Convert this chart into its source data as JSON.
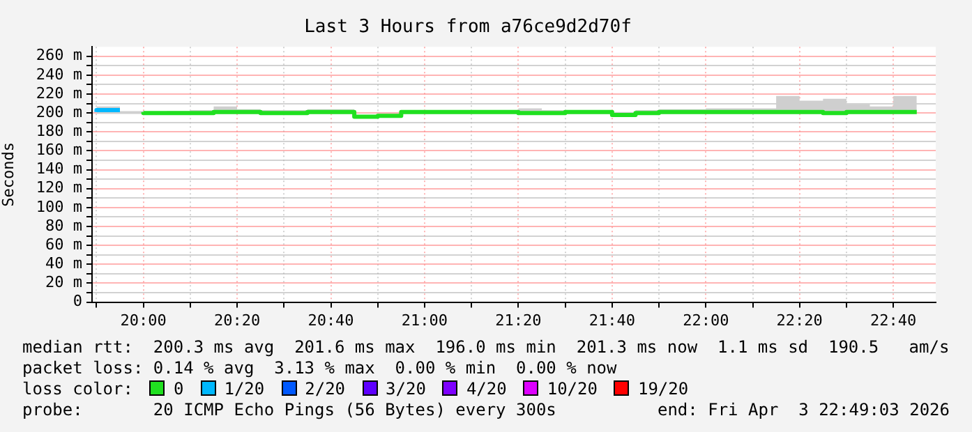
{
  "chart_data": {
    "type": "step",
    "title": "Last 3 Hours from a76ce9d2d70f",
    "ylabel": "Seconds",
    "legend_title": "loss color:",
    "legend": "bottom",
    "grid": true,
    "x": [
      19.8333,
      19.9167,
      20,
      20.0833,
      20.1667,
      20.25,
      20.3333,
      20.4167,
      20.5,
      20.5833,
      20.6667,
      20.75,
      20.8333,
      20.9167,
      21,
      21.0833,
      21.1667,
      21.25,
      21.3333,
      21.4167,
      21.5,
      21.5833,
      21.6667,
      21.75,
      21.8333,
      21.9167,
      22,
      22.0833,
      22.1667,
      22.25,
      22.3333,
      22.4167,
      22.5,
      22.5833,
      22.6667,
      22.75
    ],
    "xlim": [
      19.8175,
      22.8175
    ],
    "xticks": [
      {
        "value": 19.8333,
        "label": null
      },
      {
        "value": 20,
        "label": "20:00"
      },
      {
        "value": 20.1667,
        "label": null
      },
      {
        "value": 20.3333,
        "label": "20:20"
      },
      {
        "value": 20.5,
        "label": null
      },
      {
        "value": 20.6667,
        "label": "20:40"
      },
      {
        "value": 20.8333,
        "label": null
      },
      {
        "value": 21,
        "label": "21:00"
      },
      {
        "value": 21.1667,
        "label": null
      },
      {
        "value": 21.3333,
        "label": "21:20"
      },
      {
        "value": 21.5,
        "label": null
      },
      {
        "value": 21.6667,
        "label": "21:40"
      },
      {
        "value": 21.8333,
        "label": null
      },
      {
        "value": 22,
        "label": "22:00"
      },
      {
        "value": 22.1667,
        "label": null
      },
      {
        "value": 22.3333,
        "label": "22:20"
      },
      {
        "value": 22.5,
        "label": null
      },
      {
        "value": 22.6667,
        "label": "22:40"
      }
    ],
    "ylim": [
      0,
      270
    ],
    "yticks": [
      0,
      {
        "value": 10,
        "label": null
      },
      {
        "value": 20,
        "label": "20 m"
      },
      {
        "value": 30,
        "label": null
      },
      {
        "value": 40,
        "label": "40 m"
      },
      {
        "value": 50,
        "label": null
      },
      {
        "value": 60,
        "label": "60 m"
      },
      {
        "value": 70,
        "label": null
      },
      {
        "value": 80,
        "label": "80 m"
      },
      {
        "value": 90,
        "label": null
      },
      {
        "value": 100,
        "label": "100 m"
      },
      {
        "value": 110,
        "label": null
      },
      {
        "value": 120,
        "label": "120 m"
      },
      {
        "value": 130,
        "label": null
      },
      {
        "value": 140,
        "label": "140 m"
      },
      {
        "value": 150,
        "label": null
      },
      {
        "value": 160,
        "label": "160 m"
      },
      {
        "value": 170,
        "label": null
      },
      {
        "value": 180,
        "label": "180 m"
      },
      {
        "value": 190,
        "label": null
      },
      {
        "value": 200,
        "label": "200 m"
      },
      {
        "value": 210,
        "label": null
      },
      {
        "value": 220,
        "label": "220 m"
      },
      {
        "value": 230,
        "label": null
      },
      {
        "value": 240,
        "label": "240 m"
      },
      {
        "value": 250,
        "label": null
      },
      {
        "value": 260,
        "label": "260 m"
      }
    ],
    "series": [
      {
        "name": "0",
        "color": "#20e020",
        "values": [
          null,
          null,
          201,
          200,
          200,
          200,
          201,
          201,
          200,
          200,
          201,
          201,
          196,
          197,
          201,
          201,
          201,
          201,
          201,
          200,
          200,
          201,
          201,
          198,
          200,
          201,
          201,
          201,
          201,
          201,
          201,
          201,
          200,
          201,
          201,
          201
        ],
        "lower": [
          199,
          199,
          199,
          199,
          199,
          199,
          199,
          199,
          199,
          199,
          199,
          199,
          195,
          196,
          199,
          199,
          199,
          199,
          199,
          199,
          199,
          199,
          199,
          197,
          199,
          199,
          199,
          199,
          199,
          199,
          199,
          199,
          199,
          199,
          199,
          199
        ],
        "upper": [
          210,
          207,
          202,
          201,
          202,
          203,
          207,
          204,
          203,
          203,
          204,
          204,
          198,
          199,
          203,
          203,
          203,
          203,
          203,
          205,
          203,
          203,
          203,
          201,
          203,
          204,
          204,
          205,
          205,
          205,
          218,
          213,
          215,
          209,
          207,
          218
        ]
      },
      {
        "name": "1/20",
        "color": "#00b8ff",
        "values": [
          201,
          203,
          null,
          null,
          null,
          null,
          null,
          null,
          null,
          null,
          null,
          null,
          null,
          null,
          null,
          null,
          null,
          null,
          null,
          null,
          null,
          null,
          null,
          null,
          null,
          null,
          null,
          null,
          null,
          null,
          null,
          null,
          null,
          null,
          null,
          null
        ]
      },
      {
        "name": "2/20",
        "color": "#0059ff",
        "values": [
          null,
          null,
          null,
          null,
          null,
          null,
          null,
          null,
          null,
          null,
          null,
          null,
          null,
          null,
          null,
          null,
          null,
          null,
          null,
          null,
          null,
          null,
          null,
          null,
          null,
          null,
          null,
          null,
          null,
          null,
          null,
          null,
          null,
          null,
          null,
          null
        ]
      },
      {
        "name": "3/20",
        "color": "#5e00ff",
        "values": [
          null,
          null,
          null,
          null,
          null,
          null,
          null,
          null,
          null,
          null,
          null,
          null,
          null,
          null,
          null,
          null,
          null,
          null,
          null,
          null,
          null,
          null,
          null,
          null,
          null,
          null,
          null,
          null,
          null,
          null,
          null,
          null,
          null,
          null,
          null,
          null
        ]
      },
      {
        "name": "4/20",
        "color": "#7e00ff",
        "values": [
          null,
          null,
          null,
          null,
          null,
          null,
          null,
          null,
          null,
          null,
          null,
          null,
          null,
          null,
          null,
          null,
          null,
          null,
          null,
          null,
          null,
          null,
          null,
          null,
          null,
          null,
          null,
          null,
          null,
          null,
          null,
          null,
          null,
          null,
          null,
          null
        ]
      },
      {
        "name": "10/20",
        "color": "#dd00ff",
        "values": [
          null,
          null,
          null,
          null,
          null,
          null,
          null,
          null,
          null,
          null,
          null,
          null,
          null,
          null,
          null,
          null,
          null,
          null,
          null,
          null,
          null,
          null,
          null,
          null,
          null,
          null,
          null,
          null,
          null,
          null,
          null,
          null,
          null,
          null,
          null,
          null
        ]
      },
      {
        "name": "19/20",
        "color": "#ff0000",
        "values": [
          null,
          null,
          null,
          null,
          null,
          null,
          null,
          null,
          null,
          null,
          null,
          null,
          null,
          null,
          null,
          null,
          null,
          null,
          null,
          null,
          null,
          null,
          null,
          null,
          null,
          null,
          null,
          null,
          null,
          null,
          null,
          null,
          null,
          null,
          null,
          null
        ]
      }
    ],
    "annotations": [
      "median rtt:  200.3 ms avg  201.6 ms max  196.0 ms min  201.3 ms now  1.1 ms sd  190.5   am/s",
      "packet loss: 0.14 % avg  3.13 % max  0.00 % min  0.00 % now",
      "probe:       20 ICMP Echo Pings (56 Bytes) every 300s",
      "end: Fri Apr  3 22:49:03 2026"
    ]
  }
}
